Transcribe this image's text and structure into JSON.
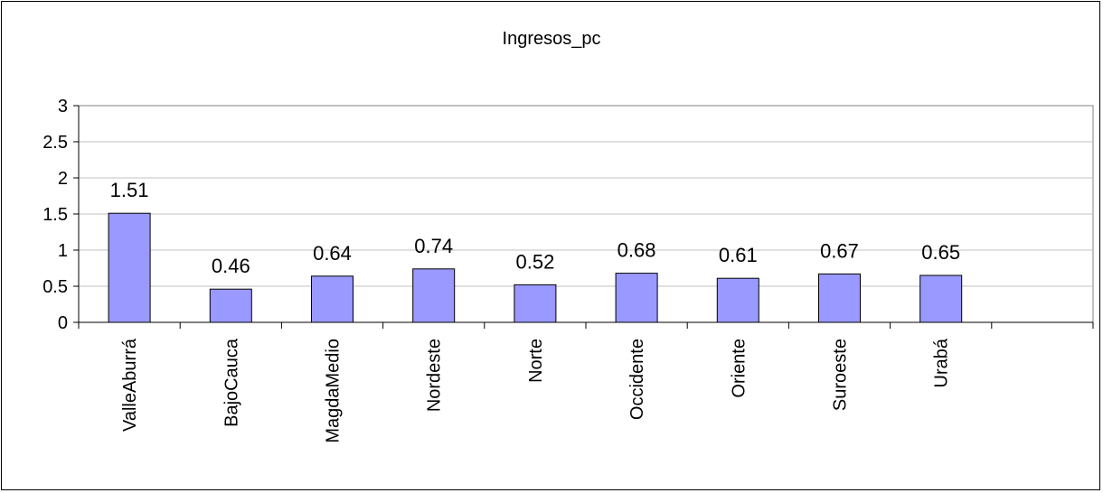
{
  "chart_data": {
    "type": "bar",
    "title": "Ingresos_pc",
    "xlabel": "",
    "ylabel": "",
    "categories": [
      "ValleAburrá",
      "BajoCauca",
      "MagdaMedio",
      "Nordeste",
      "Norte",
      "Occidente",
      "Oriente",
      "Suroeste",
      "Urabá",
      ""
    ],
    "values": [
      1.51,
      0.46,
      0.64,
      0.74,
      0.52,
      0.68,
      0.61,
      0.67,
      0.65,
      null
    ],
    "value_labels": [
      "1.51",
      "0.46",
      "0.64",
      "0.74",
      "0.52",
      "0.68",
      "0.61",
      "0.67",
      "0.65",
      ""
    ],
    "ylim": [
      0,
      3
    ],
    "yticks": [
      "0",
      "0.5",
      "1",
      "1.5",
      "2",
      "2.5",
      "3"
    ],
    "grid": true,
    "legend": "none",
    "colors": {
      "bar_fill": "#9999ff",
      "bar_stroke": "#000000",
      "grid": "#c0c0c0",
      "axis": "#000000"
    }
  }
}
